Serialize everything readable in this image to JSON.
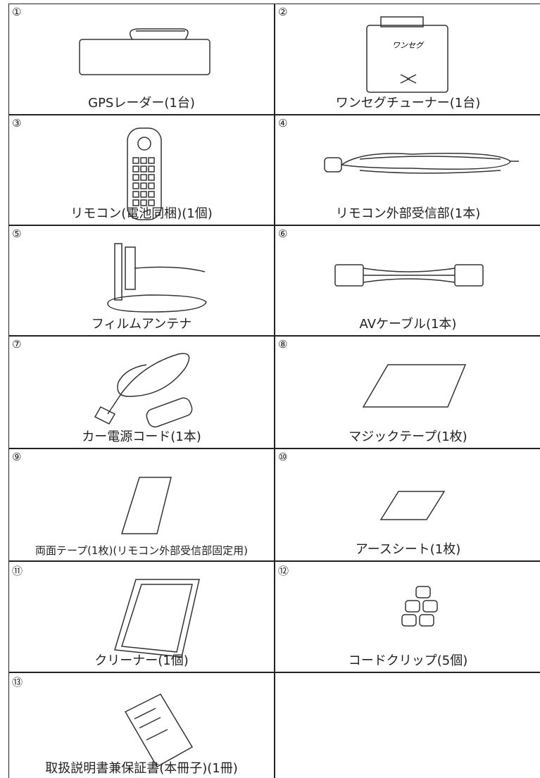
{
  "items": [
    {
      "number": "①",
      "label": "GPSレーダー(1台)"
    },
    {
      "number": "②",
      "label": "ワンセグチューナー(1台)"
    },
    {
      "number": "③",
      "label": "リモコン(電池同梱)(1個)"
    },
    {
      "number": "④",
      "label": "リモコン外部受信部(1本)"
    },
    {
      "number": "⑤",
      "label": "フィルムアンテナ"
    },
    {
      "number": "⑥",
      "label": "AVケーブル(1本)"
    },
    {
      "number": "⑦",
      "label": "カー電源コード(1本)"
    },
    {
      "number": "⑧",
      "label": "マジックテープ(1枚)"
    },
    {
      "number": "⑨",
      "label": "両面テープ(1枚)(リモコン外部受信部固定用)"
    },
    {
      "number": "⑩",
      "label": "アースシート(1枚)"
    },
    {
      "number": "⑪",
      "label": "クリーナー(1個)"
    },
    {
      "number": "⑫",
      "label": "コードクリップ(5個)"
    },
    {
      "number": "⑬",
      "label": "取扱説明書兼保証書(本冊子)(1冊)"
    }
  ]
}
